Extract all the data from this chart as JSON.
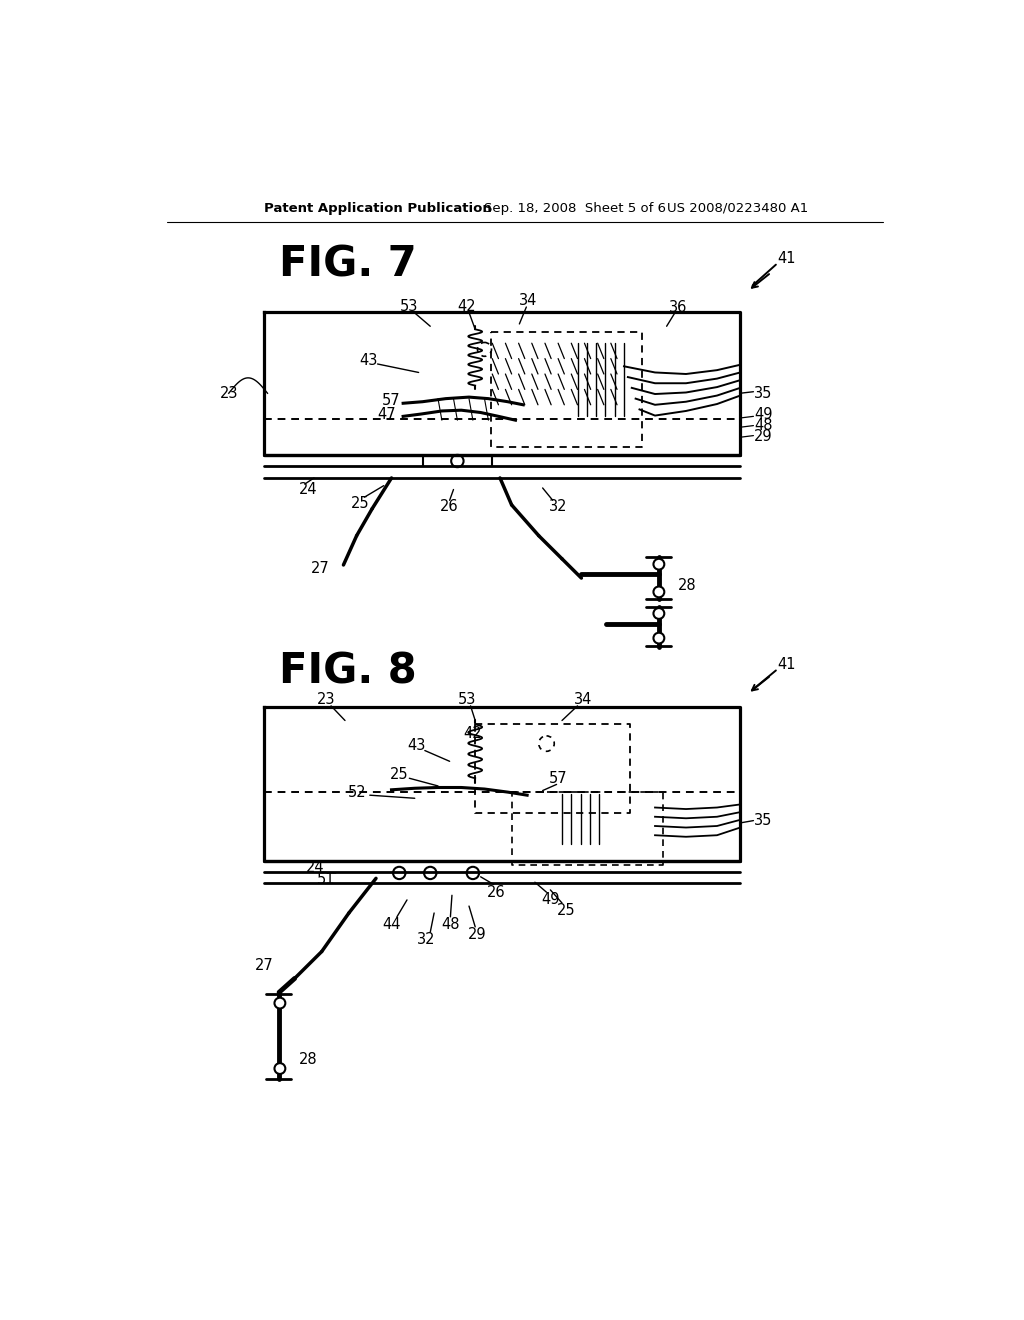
{
  "bg_color": "#ffffff",
  "header_text": "Patent Application Publication",
  "header_date": "Sep. 18, 2008  Sheet 5 of 6",
  "header_patent": "US 2008/0223480 A1"
}
